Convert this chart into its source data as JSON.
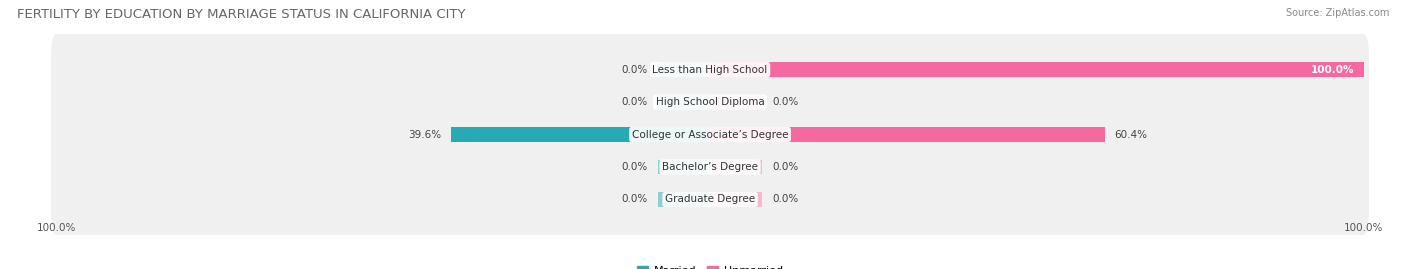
{
  "title": "FERTILITY BY EDUCATION BY MARRIAGE STATUS IN CALIFORNIA CITY",
  "source": "Source: ZipAtlas.com",
  "categories": [
    "Less than High School",
    "High School Diploma",
    "College or Associate’s Degree",
    "Bachelor’s Degree",
    "Graduate Degree"
  ],
  "married": [
    0.0,
    0.0,
    39.6,
    0.0,
    0.0
  ],
  "unmarried": [
    100.0,
    0.0,
    60.4,
    0.0,
    0.0
  ],
  "married_color_full": "#28aab4",
  "married_color_light": "#8ecdd2",
  "unmarried_color_full": "#f46aa0",
  "unmarried_color_light": "#f9b8d2",
  "row_bg_color": "#f0f0f0",
  "stub_pct": 8.0,
  "title_fontsize": 9.5,
  "source_fontsize": 7,
  "label_fontsize": 7.5,
  "tick_fontsize": 7.5,
  "legend_fontsize": 8,
  "bar_height": 0.62,
  "fig_width": 14.06,
  "fig_height": 2.69
}
